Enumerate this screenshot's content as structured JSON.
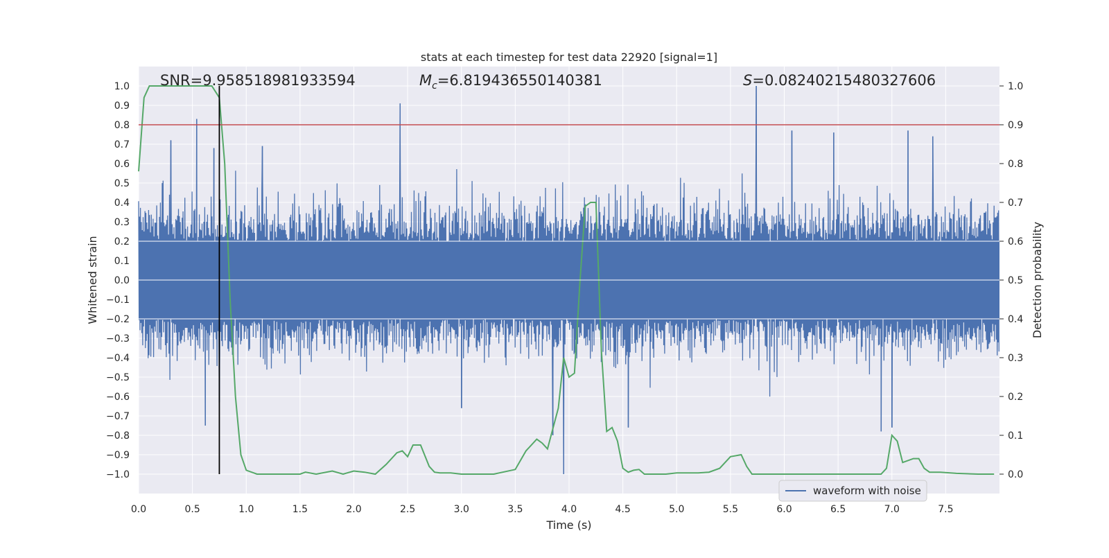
{
  "chart_data": {
    "type": "line",
    "title": "stats at each timestep for test data 22920 [signal=1]",
    "xlabel": "Time (s)",
    "ylabel": "Whitened strain",
    "y2label": "Detection probability",
    "xlim": [
      0,
      8
    ],
    "ylim": [
      -1.1,
      1.1
    ],
    "y2lim": [
      -0.05,
      1.05
    ],
    "grid": true,
    "x_ticks": [
      0,
      0.5,
      1,
      1.5,
      2,
      2.5,
      3,
      3.5,
      4,
      4.5,
      5,
      5.5,
      6,
      6.5,
      7,
      7.5
    ],
    "x_tick_labels": [
      "0.0",
      "0.5",
      "1.0",
      "1.5",
      "2.0",
      "2.5",
      "3.0",
      "3.5",
      "4.0",
      "4.5",
      "5.0",
      "5.5",
      "6.0",
      "6.5",
      "7.0",
      "7.5"
    ],
    "y_ticks": [
      1,
      0.9,
      0.8,
      0.7,
      0.6,
      0.5,
      0.4,
      0.3,
      0.2,
      0.1,
      0,
      -0.1,
      -0.2,
      -0.3,
      -0.4,
      -0.5,
      -0.6,
      -0.7,
      -0.8,
      -0.9,
      -1
    ],
    "y_tick_labels": [
      "1.0",
      "0.9",
      "0.8",
      "0.7",
      "0.6",
      "0.5",
      "0.4",
      "0.3",
      "0.2",
      "0.1",
      "0.0",
      "−0.1",
      "−0.2",
      "−0.3",
      "−0.4",
      "−0.5",
      "−0.6",
      "−0.7",
      "−0.8",
      "−0.9",
      "−1.0"
    ],
    "y2_ticks": [
      1,
      0.9,
      0.8,
      0.7,
      0.6,
      0.5,
      0.4,
      0.3,
      0.2,
      0.1,
      0
    ],
    "y2_tick_labels": [
      "1.0",
      "0.9",
      "0.8",
      "0.7",
      "0.6",
      "0.5",
      "0.4",
      "0.3",
      "0.2",
      "0.1",
      "0.0"
    ],
    "annotations": {
      "snr": "SNR=9.958518981933594",
      "mc_symbol": "M",
      "mc_sub": "c",
      "mc_value": "=6.819436550140381",
      "s_symbol": "S",
      "s_value": "=0.08240215480327606"
    },
    "threshold": {
      "value": 0.8,
      "color": "#c44e52"
    },
    "marker_line": {
      "x": 0.75,
      "y_range": [
        -1.0,
        1.0
      ],
      "color": "#000000"
    },
    "legend": {
      "label": "waveform with noise",
      "placement": "lower-right"
    },
    "series": [
      {
        "name": "waveform with noise",
        "color": "#4c72b0",
        "kind": "dense_noise",
        "x_range": [
          0,
          8
        ],
        "samples": 1900,
        "core_amplitude": 0.2,
        "typical_peak": 0.45,
        "spikes": [
          {
            "x": 0.3,
            "y": 0.72
          },
          {
            "x": 0.54,
            "y": 0.83
          },
          {
            "x": 0.62,
            "y": -0.75
          },
          {
            "x": 0.7,
            "y": 0.68
          },
          {
            "x": 0.75,
            "y": -0.63
          },
          {
            "x": 1.15,
            "y": 0.69
          },
          {
            "x": 2.43,
            "y": 0.91
          },
          {
            "x": 3.0,
            "y": -0.66
          },
          {
            "x": 3.85,
            "y": -0.8
          },
          {
            "x": 3.95,
            "y": -1.0
          },
          {
            "x": 4.55,
            "y": -0.76
          },
          {
            "x": 5.74,
            "y": 1.0
          },
          {
            "x": 6.07,
            "y": 0.77
          },
          {
            "x": 6.46,
            "y": 0.76
          },
          {
            "x": 6.9,
            "y": -0.78
          },
          {
            "x": 7.0,
            "y": -0.76
          },
          {
            "x": 7.15,
            "y": 0.77
          },
          {
            "x": 7.38,
            "y": 0.74
          }
        ]
      },
      {
        "name": "detection probability",
        "axis": "right",
        "color": "#55a868",
        "x": [
          0.0,
          0.05,
          0.1,
          0.2,
          0.3,
          0.4,
          0.5,
          0.6,
          0.68,
          0.75,
          0.8,
          0.85,
          0.9,
          0.95,
          1.0,
          1.1,
          1.3,
          1.5,
          1.55,
          1.65,
          1.8,
          1.9,
          2.0,
          2.1,
          2.2,
          2.3,
          2.4,
          2.45,
          2.5,
          2.55,
          2.62,
          2.7,
          2.75,
          2.8,
          2.9,
          3.0,
          3.3,
          3.5,
          3.6,
          3.7,
          3.75,
          3.8,
          3.9,
          3.95,
          4.0,
          4.05,
          4.1,
          4.15,
          4.2,
          4.25,
          4.3,
          4.35,
          4.4,
          4.45,
          4.5,
          4.55,
          4.6,
          4.65,
          4.7,
          4.75,
          4.8,
          4.9,
          5.0,
          5.2,
          5.3,
          5.4,
          5.5,
          5.6,
          5.65,
          5.7,
          5.75,
          5.8,
          6.0,
          6.2,
          6.5,
          6.8,
          6.9,
          6.95,
          7.0,
          7.05,
          7.1,
          7.2,
          7.25,
          7.3,
          7.35,
          7.45,
          7.6,
          7.8,
          7.95
        ],
        "values": [
          0.78,
          0.97,
          1.0,
          1.0,
          1.0,
          1.0,
          1.0,
          1.0,
          1.0,
          0.97,
          0.8,
          0.45,
          0.2,
          0.05,
          0.01,
          0.0,
          0.0,
          0.0,
          0.005,
          0.0,
          0.008,
          0.0,
          0.008,
          0.005,
          0.0,
          0.025,
          0.055,
          0.06,
          0.045,
          0.075,
          0.075,
          0.02,
          0.005,
          0.003,
          0.003,
          0.0,
          0.0,
          0.012,
          0.06,
          0.09,
          0.08,
          0.065,
          0.17,
          0.3,
          0.25,
          0.26,
          0.49,
          0.69,
          0.7,
          0.7,
          0.32,
          0.11,
          0.12,
          0.085,
          0.015,
          0.005,
          0.01,
          0.012,
          0.0,
          0.0,
          0.0,
          0.0,
          0.003,
          0.003,
          0.005,
          0.015,
          0.045,
          0.05,
          0.02,
          0.0,
          0.0,
          0.0,
          0.0,
          0.0,
          0.0,
          0.0,
          0.0,
          0.015,
          0.1,
          0.085,
          0.03,
          0.04,
          0.04,
          0.015,
          0.005,
          0.005,
          0.002,
          0.0,
          0.0
        ]
      }
    ]
  }
}
